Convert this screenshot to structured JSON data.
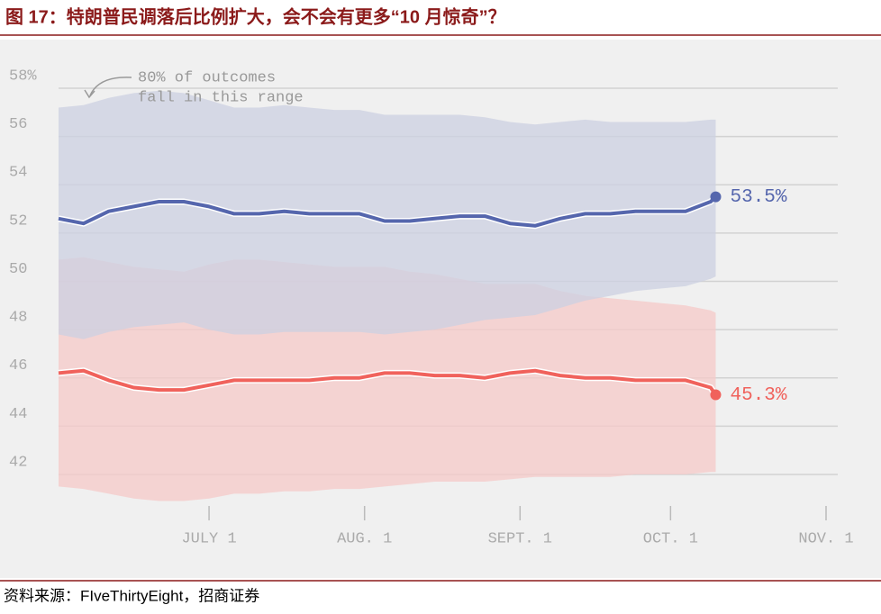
{
  "chart_data": {
    "type": "band-line",
    "title": "图 17：特朗普民调落后比例扩大，会不会有更多“10 月惊奇”？",
    "source": "资料来源：FIveThirtyEight，招商证券",
    "annotation": [
      "80% of outcomes",
      "fall in this range"
    ],
    "x": [
      "06-01",
      "06-06",
      "06-11",
      "06-16",
      "06-21",
      "06-26",
      "07-01",
      "07-06",
      "07-11",
      "07-16",
      "07-21",
      "07-26",
      "07-31",
      "08-05",
      "08-10",
      "08-15",
      "08-20",
      "08-25",
      "08-30",
      "09-04",
      "09-09",
      "09-14",
      "09-19",
      "09-24",
      "09-29",
      "10-04",
      "10-09",
      "10-10"
    ],
    "xlim": [
      "06-01",
      "11-01"
    ],
    "xticks": [
      {
        "value": "07-01",
        "label": "JULY 1"
      },
      {
        "value": "08-01",
        "label": "AUG. 1"
      },
      {
        "value": "09-01",
        "label": "SEPT. 1"
      },
      {
        "value": "10-01",
        "label": "OCT. 1"
      },
      {
        "value": "11-01",
        "label": "NOV. 1"
      }
    ],
    "ylim": [
      41,
      59
    ],
    "yticks": [
      42,
      44,
      46,
      48,
      50,
      52,
      54,
      56,
      {
        "value": 58,
        "label": "58%"
      }
    ],
    "grid": true,
    "series": [
      {
        "color": "#f0625c",
        "band_color": "#f6c9c8",
        "values": [
          46.2,
          46.3,
          45.9,
          45.6,
          45.5,
          45.5,
          45.7,
          45.9,
          45.9,
          45.9,
          45.9,
          46.0,
          46.0,
          46.2,
          46.2,
          46.1,
          46.1,
          46.0,
          46.2,
          46.3,
          46.1,
          46.0,
          46.0,
          45.9,
          45.9,
          45.9,
          45.6,
          45.3
        ],
        "value_labels": [
          null,
          null,
          null,
          null,
          null,
          null,
          null,
          null,
          null,
          null,
          null,
          null,
          null,
          null,
          null,
          null,
          null,
          null,
          null,
          null,
          null,
          null,
          null,
          null,
          null,
          null,
          null,
          "45.3%"
        ],
        "band_upper": [
          50.9,
          51.0,
          50.8,
          50.6,
          50.5,
          50.4,
          50.7,
          50.9,
          50.9,
          50.8,
          50.7,
          50.6,
          50.6,
          50.6,
          50.4,
          50.3,
          50.1,
          49.9,
          49.9,
          49.9,
          49.6,
          49.4,
          49.3,
          49.2,
          49.1,
          49.0,
          48.8,
          48.7
        ],
        "band_lower": [
          41.5,
          41.4,
          41.2,
          41.0,
          40.9,
          40.9,
          41.0,
          41.2,
          41.2,
          41.3,
          41.3,
          41.4,
          41.4,
          41.5,
          41.6,
          41.7,
          41.7,
          41.7,
          41.8,
          41.9,
          41.9,
          41.9,
          41.9,
          42.0,
          42.0,
          42.0,
          42.1,
          42.1
        ]
      },
      {
        "color": "#5566ad",
        "band_color": "#ccd0e2",
        "values": [
          52.6,
          52.4,
          52.9,
          53.1,
          53.3,
          53.3,
          53.1,
          52.8,
          52.8,
          52.9,
          52.8,
          52.8,
          52.8,
          52.5,
          52.5,
          52.6,
          52.7,
          52.7,
          52.4,
          52.3,
          52.6,
          52.8,
          52.8,
          52.9,
          52.9,
          52.9,
          53.3,
          53.5
        ],
        "value_labels": [
          null,
          null,
          null,
          null,
          null,
          null,
          null,
          null,
          null,
          null,
          null,
          null,
          null,
          null,
          null,
          null,
          null,
          null,
          null,
          null,
          null,
          null,
          null,
          null,
          null,
          null,
          null,
          "53.5%"
        ],
        "band_upper": [
          57.2,
          57.3,
          57.6,
          57.8,
          57.9,
          57.8,
          57.5,
          57.2,
          57.2,
          57.3,
          57.2,
          57.1,
          57.1,
          56.9,
          56.9,
          56.9,
          56.9,
          56.8,
          56.6,
          56.5,
          56.6,
          56.7,
          56.6,
          56.6,
          56.6,
          56.6,
          56.7,
          56.7
        ],
        "band_lower": [
          47.8,
          47.6,
          47.9,
          48.1,
          48.2,
          48.3,
          48.0,
          47.8,
          47.8,
          47.9,
          47.9,
          47.9,
          47.9,
          47.8,
          47.9,
          48.0,
          48.2,
          48.4,
          48.5,
          48.6,
          48.9,
          49.2,
          49.4,
          49.6,
          49.7,
          49.8,
          50.1,
          50.2
        ]
      }
    ]
  }
}
